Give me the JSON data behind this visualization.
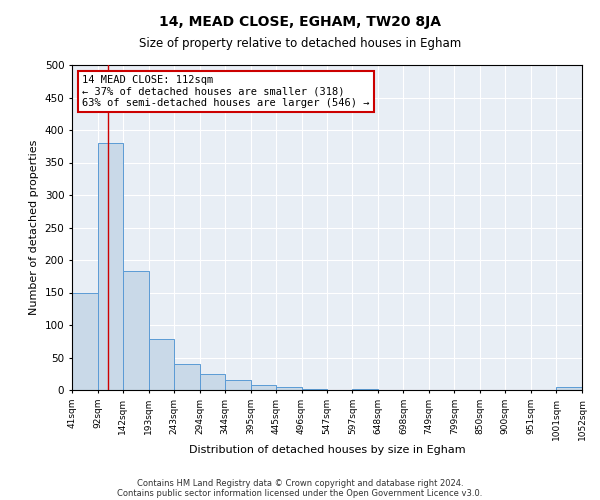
{
  "title": "14, MEAD CLOSE, EGHAM, TW20 8JA",
  "subtitle": "Size of property relative to detached houses in Egham",
  "xlabel": "Distribution of detached houses by size in Egham",
  "ylabel": "Number of detached properties",
  "bin_edges": [
    41,
    92,
    142,
    193,
    243,
    294,
    344,
    395,
    445,
    496,
    547,
    597,
    648,
    698,
    749,
    799,
    850,
    900,
    951,
    1001,
    1052
  ],
  "bar_heights": [
    150,
    380,
    183,
    78,
    40,
    25,
    16,
    8,
    5,
    2,
    0,
    2,
    0,
    0,
    0,
    0,
    0,
    0,
    0,
    5
  ],
  "bar_color": "#c9d9e8",
  "bar_edge_color": "#5b9bd5",
  "vline_x": 112,
  "vline_color": "#cc0000",
  "annotation_line1": "14 MEAD CLOSE: 112sqm",
  "annotation_line2": "← 37% of detached houses are smaller (318)",
  "annotation_line3": "63% of semi-detached houses are larger (546) →",
  "annotation_box_color": "#ffffff",
  "annotation_box_edge_color": "#cc0000",
  "ylim": [
    0,
    500
  ],
  "yticks": [
    0,
    50,
    100,
    150,
    200,
    250,
    300,
    350,
    400,
    450,
    500
  ],
  "background_color": "#e8eef5",
  "grid_color": "#ffffff",
  "footer_line1": "Contains HM Land Registry data © Crown copyright and database right 2024.",
  "footer_line2": "Contains public sector information licensed under the Open Government Licence v3.0."
}
